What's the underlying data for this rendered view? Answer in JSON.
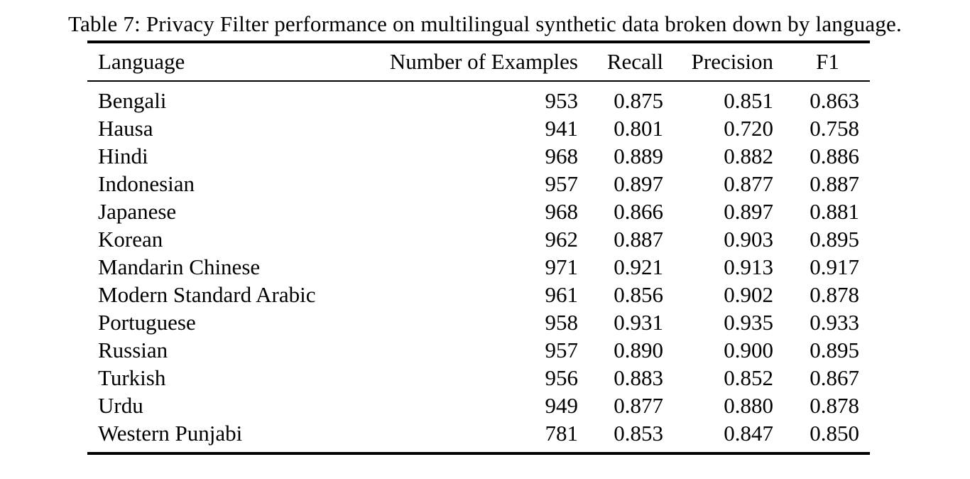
{
  "caption": "Table 7: Privacy Filter performance on multilingual synthetic data broken down by language.",
  "colors": {
    "background": "#ffffff",
    "text": "#000000",
    "rule": "#000000"
  },
  "chart_data": {
    "type": "table",
    "title": "Table 7: Privacy Filter performance on multilingual synthetic data broken down by language.",
    "columns": [
      "Language",
      "Number of Examples",
      "Recall",
      "Precision",
      "F1"
    ],
    "rows": [
      [
        "Bengali",
        "953",
        "0.875",
        "0.851",
        "0.863"
      ],
      [
        "Hausa",
        "941",
        "0.801",
        "0.720",
        "0.758"
      ],
      [
        "Hindi",
        "968",
        "0.889",
        "0.882",
        "0.886"
      ],
      [
        "Indonesian",
        "957",
        "0.897",
        "0.877",
        "0.887"
      ],
      [
        "Japanese",
        "968",
        "0.866",
        "0.897",
        "0.881"
      ],
      [
        "Korean",
        "962",
        "0.887",
        "0.903",
        "0.895"
      ],
      [
        "Mandarin Chinese",
        "971",
        "0.921",
        "0.913",
        "0.917"
      ],
      [
        "Modern Standard Arabic",
        "961",
        "0.856",
        "0.902",
        "0.878"
      ],
      [
        "Portuguese",
        "958",
        "0.931",
        "0.935",
        "0.933"
      ],
      [
        "Russian",
        "957",
        "0.890",
        "0.900",
        "0.895"
      ],
      [
        "Turkish",
        "956",
        "0.883",
        "0.852",
        "0.867"
      ],
      [
        "Urdu",
        "949",
        "0.877",
        "0.880",
        "0.878"
      ],
      [
        "Western Punjabi",
        "781",
        "0.853",
        "0.847",
        "0.850"
      ]
    ]
  }
}
